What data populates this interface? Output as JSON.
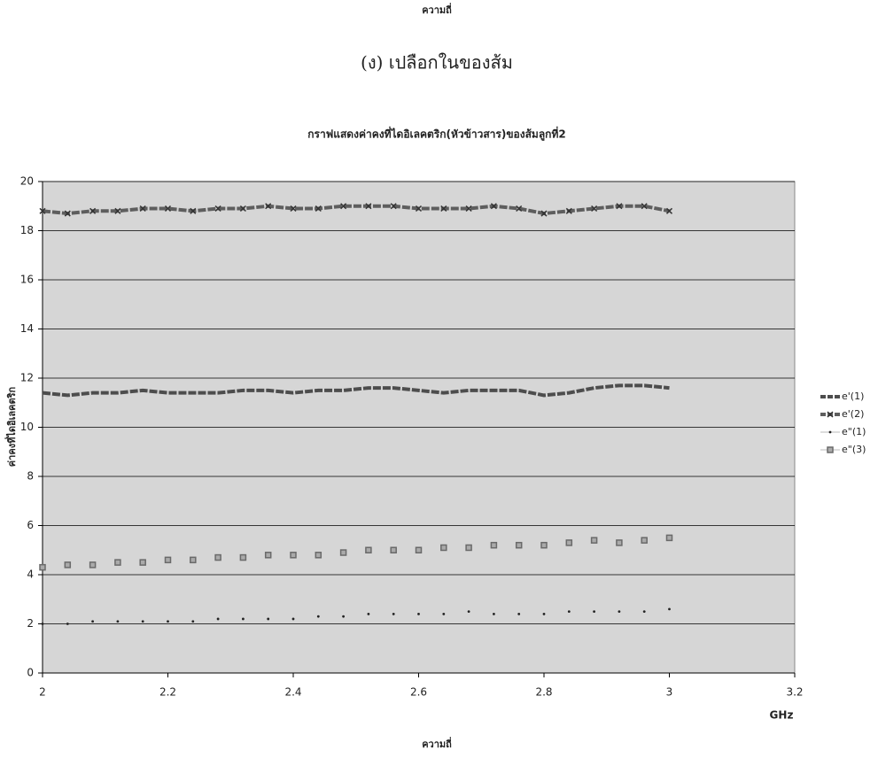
{
  "page": {
    "top_caption": "ความถี่",
    "heading": "(ง) เปลือกในของส้ม"
  },
  "chart_data": {
    "type": "line",
    "title": "กราฟแสดงค่าคงที่ไดอิเลคตริก(หัวข้าวสาร)ของส้มลูกที่2",
    "y_label": "ค่าคงที่ไดอิเลคตริก",
    "x_unit": "GHz",
    "x_label": "ความถี่",
    "x": [
      2,
      2.04,
      2.08,
      2.12,
      2.16,
      2.2,
      2.24,
      2.28,
      2.32,
      2.36,
      2.4,
      2.44,
      2.48,
      2.52,
      2.56,
      2.6,
      2.64,
      2.68,
      2.72,
      2.76,
      2.8,
      2.84,
      2.88,
      2.92,
      2.96,
      3
    ],
    "series": [
      {
        "name": "e'(1)",
        "color": "#4d4d4d",
        "marker": "none",
        "values": [
          11.4,
          11.3,
          11.4,
          11.4,
          11.5,
          11.4,
          11.4,
          11.4,
          11.5,
          11.5,
          11.4,
          11.5,
          11.5,
          11.6,
          11.6,
          11.5,
          11.4,
          11.5,
          11.5,
          11.5,
          11.3,
          11.4,
          11.6,
          11.7,
          11.7,
          11.6
        ]
      },
      {
        "name": "e'(2)",
        "color": "#5e5e5e",
        "marker": "x",
        "values": [
          18.8,
          18.7,
          18.8,
          18.8,
          18.9,
          18.9,
          18.8,
          18.9,
          18.9,
          19.0,
          18.9,
          18.9,
          19.0,
          19.0,
          19.0,
          18.9,
          18.9,
          18.9,
          19.0,
          18.9,
          18.7,
          18.8,
          18.9,
          19.0,
          19.0,
          18.8
        ]
      },
      {
        "name": "e\"(1)",
        "color": "#222222",
        "marker": "dot",
        "values": [
          2.0,
          2.0,
          2.1,
          2.1,
          2.1,
          2.1,
          2.1,
          2.2,
          2.2,
          2.2,
          2.2,
          2.3,
          2.3,
          2.4,
          2.4,
          2.4,
          2.4,
          2.5,
          2.4,
          2.4,
          2.4,
          2.5,
          2.5,
          2.5,
          2.5,
          2.6
        ]
      },
      {
        "name": "e\"(3)",
        "color": "#6a6a6a",
        "marker": "square",
        "values": [
          4.3,
          4.4,
          4.4,
          4.5,
          4.5,
          4.6,
          4.6,
          4.7,
          4.7,
          4.8,
          4.8,
          4.8,
          4.9,
          5.0,
          5.0,
          5.0,
          5.1,
          5.1,
          5.2,
          5.2,
          5.2,
          5.3,
          5.4,
          5.3,
          5.4,
          5.5
        ]
      }
    ],
    "xlim": [
      2,
      3.2
    ],
    "xticks": [
      2,
      2.2,
      2.4,
      2.6,
      2.8,
      3,
      3.2
    ],
    "ylim": [
      0,
      20
    ],
    "yticks": [
      0,
      2,
      4,
      6,
      8,
      10,
      12,
      14,
      16,
      18,
      20
    ],
    "grid": true,
    "legend": "right",
    "plot_background": "#d6d6d6"
  }
}
